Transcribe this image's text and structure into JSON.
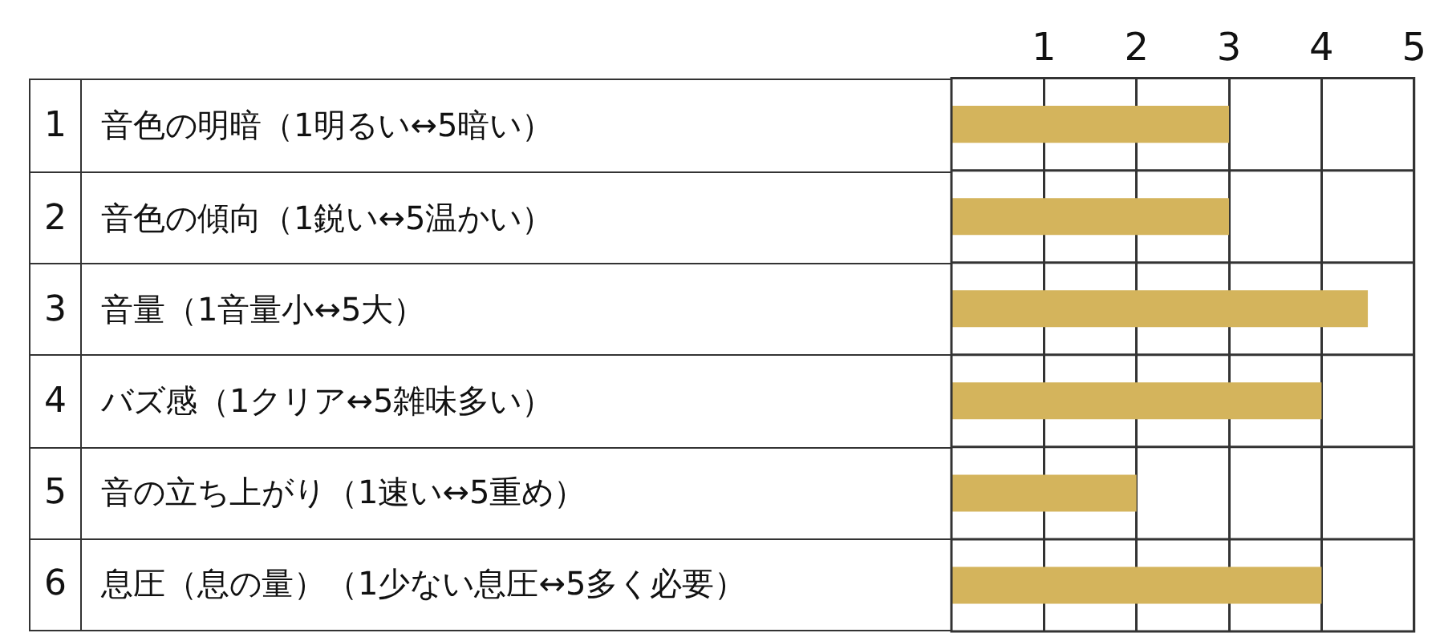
{
  "chart_data": {
    "type": "bar",
    "orientation": "horizontal",
    "categories": [
      "1 音色の明暗（1明るい↔5暗い）",
      "2 音色の傾向（1鋭い↔5温かい）",
      "3 音量（1音量小↔5大）",
      "4 バズ感（1クリア↔5雑味多い）",
      "5 音の立ち上がり（1速い↔5重め）",
      "6 息圧（息の量）（1少ない息圧↔5多く必要）"
    ],
    "values": [
      3,
      3,
      4.5,
      4,
      2,
      4
    ],
    "color": "#d4b45c",
    "xlim": [
      0,
      5
    ],
    "xticks": [
      1,
      2,
      3,
      4,
      5
    ],
    "grid": "x",
    "legend": false
  }
}
